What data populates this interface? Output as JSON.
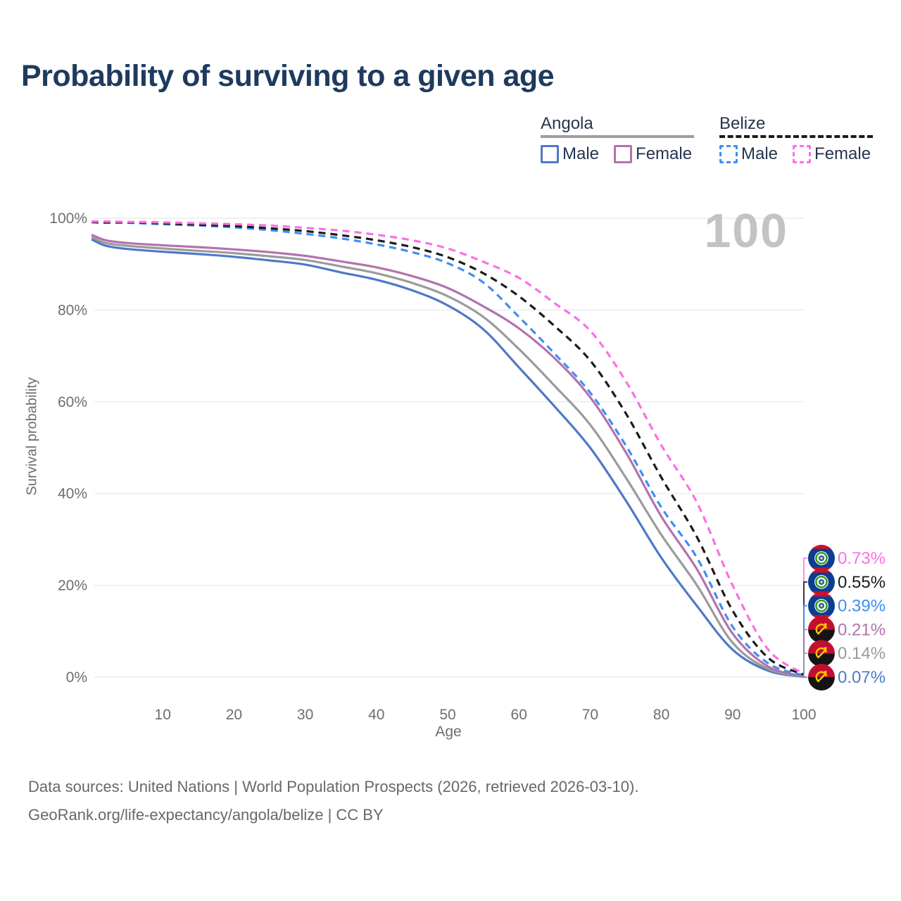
{
  "header": {
    "title": "Probability of surviving to a given age"
  },
  "legend": {
    "groups": [
      {
        "country": "Angola",
        "underline_style": "solid",
        "underline_color": "#9e9e9e",
        "items": [
          {
            "label": "Male",
            "color": "#4e79c7",
            "dashed": false
          },
          {
            "label": "Female",
            "color": "#b273ae",
            "dashed": false
          }
        ]
      },
      {
        "country": "Belize",
        "underline_style": "dashed",
        "underline_color": "#1b1b1b",
        "items": [
          {
            "label": "Male",
            "color": "#3f8ef4",
            "dashed": true
          },
          {
            "label": "Female",
            "color": "#fa70e4",
            "dashed": true
          }
        ]
      }
    ]
  },
  "chart_data": {
    "type": "line",
    "title": "Probability of surviving to a given age",
    "xlabel": "Age",
    "ylabel": "Survival probability",
    "xlim": [
      0,
      100
    ],
    "ylim": [
      0,
      100
    ],
    "xticks": [
      10,
      20,
      30,
      40,
      50,
      60,
      70,
      80,
      90,
      100
    ],
    "yticks": [
      0,
      20,
      40,
      60,
      80,
      100
    ],
    "ytick_suffix": "%",
    "grid": "horizontal",
    "legend_position": "top-right",
    "watermark": "100",
    "x": [
      0,
      2,
      5,
      10,
      15,
      20,
      25,
      30,
      35,
      40,
      45,
      50,
      55,
      60,
      65,
      70,
      75,
      80,
      85,
      90,
      95,
      100
    ],
    "series": [
      {
        "id": "angola-male",
        "name": "Angola Male",
        "country": "Angola",
        "sex": "Male",
        "style": "solid",
        "color": "#4e79c7",
        "flag": "angola",
        "end_label": "0.07%",
        "values": [
          95.4,
          94.0,
          93.3,
          92.7,
          92.2,
          91.6,
          90.8,
          89.9,
          88.2,
          86.6,
          84.3,
          81.0,
          75.8,
          67.5,
          59.0,
          50.0,
          38.5,
          26.0,
          15.5,
          6.0,
          1.4,
          0.07
        ]
      },
      {
        "id": "angola-total",
        "name": "Angola Total",
        "country": "Angola",
        "sex": "Total",
        "style": "solid",
        "color": "#9b9b9b",
        "flag": "angola",
        "end_label": "0.14%",
        "values": [
          95.9,
          94.6,
          94.0,
          93.4,
          92.9,
          92.4,
          91.7,
          90.9,
          89.5,
          88.0,
          85.9,
          83.0,
          78.5,
          71.5,
          63.5,
          55.0,
          43.5,
          31.0,
          20.0,
          7.5,
          1.8,
          0.14
        ]
      },
      {
        "id": "angola-female",
        "name": "Angola Female",
        "country": "Angola",
        "sex": "Female",
        "style": "solid",
        "color": "#b273ae",
        "flag": "angola",
        "end_label": "0.21%",
        "values": [
          96.4,
          95.2,
          94.6,
          94.1,
          93.7,
          93.2,
          92.6,
          91.8,
          90.6,
          89.3,
          87.4,
          84.8,
          80.8,
          76.0,
          69.5,
          61.0,
          49.0,
          35.0,
          23.5,
          9.5,
          2.3,
          0.21
        ]
      },
      {
        "id": "belize-male",
        "name": "Belize Male",
        "country": "Belize",
        "sex": "Male",
        "style": "dashed",
        "color": "#3f8ef4",
        "flag": "belize",
        "end_label": "0.39%",
        "values": [
          99.1,
          99.0,
          99.0,
          98.7,
          98.4,
          98.0,
          97.4,
          96.6,
          95.6,
          94.3,
          92.6,
          90.2,
          86.0,
          78.5,
          70.5,
          62.0,
          50.5,
          37.0,
          26.0,
          11.0,
          3.0,
          0.39
        ]
      },
      {
        "id": "belize-total",
        "name": "Belize Total",
        "country": "Belize",
        "sex": "Total",
        "style": "dashed",
        "color": "#1b1b1b",
        "flag": "belize",
        "end_label": "0.55%",
        "values": [
          99.2,
          99.1,
          99.1,
          98.9,
          98.6,
          98.3,
          97.8,
          97.2,
          96.3,
          95.2,
          93.7,
          91.5,
          88.0,
          83.0,
          76.5,
          69.0,
          57.5,
          43.5,
          30.5,
          14.5,
          4.2,
          0.55
        ]
      },
      {
        "id": "belize-female",
        "name": "Belize Female",
        "country": "Belize",
        "sex": "Female",
        "style": "dashed",
        "color": "#fa70e4",
        "flag": "belize",
        "end_label": "0.73%",
        "values": [
          99.3,
          99.3,
          99.2,
          99.1,
          98.9,
          98.7,
          98.4,
          97.9,
          97.3,
          96.4,
          95.2,
          93.4,
          90.5,
          87.0,
          81.5,
          75.5,
          64.5,
          50.5,
          38.0,
          20.0,
          6.0,
          0.73
        ]
      }
    ]
  },
  "colors": {
    "title": "#1e3a5e",
    "axis_text": "#6e6e6e",
    "gridline": "#ececec",
    "watermark": "#c3c3c3",
    "legend_text": "#26354f",
    "footer_text": "#686868"
  },
  "footer": {
    "line1": "Data sources: United Nations | World Population Prospects (2026, retrieved 2026-03-10).",
    "line2": "GeoRank.org/life-expectancy/angola/belize | CC BY"
  }
}
